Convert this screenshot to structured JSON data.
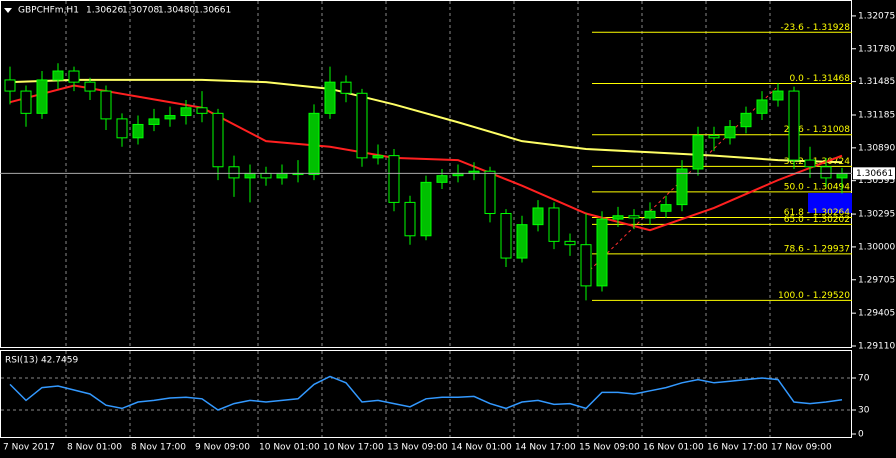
{
  "chart_data": {
    "type": "candlestick",
    "title": "GBPCHFm,H1",
    "header_values": [
      1.30626,
      1.30708,
      1.3048,
      1.30661
    ],
    "header_value_labels": [
      "1.30626",
      "1.30708",
      "1.30480",
      "1.30661"
    ],
    "ylim": [
      1.29101,
      1.32218
    ],
    "yticks": [
      1.32075,
      {
        "value": 1.3178,
        "label": "1.31780"
      },
      1.31485,
      1.31185,
      {
        "value": 1.3089,
        "label": "1.30890"
      },
      1.30595,
      1.30295,
      {
        "value": 1.3,
        "label": "1.30000"
      },
      1.29705,
      1.29405,
      {
        "value": 1.2911,
        "label": "1.29110"
      }
    ],
    "time_labels": [
      "7 Nov 2017",
      "8 Nov 01:00",
      "8 Nov 17:00",
      "9 Nov 09:00",
      "10 Nov 01:00",
      "10 Nov 17:00",
      "13 Nov 09:00",
      "14 Nov 01:00",
      "14 Nov 17:00",
      "15 Nov 09:00",
      "16 Nov 01:00",
      "16 Nov 17:00",
      "17 Nov 09:00"
    ],
    "grid": true,
    "up_color": "#00c000",
    "down_color": "#000000",
    "wick_color": "#00ff00",
    "open": [
      1.315,
      1.314,
      1.312,
      1.315,
      1.3158,
      1.3148,
      1.314,
      1.3115,
      1.3098,
      1.311,
      1.3115,
      1.3118,
      1.3125,
      1.312,
      1.3072,
      1.3062,
      1.3066,
      1.3062,
      1.3066,
      1.3065,
      1.312,
      1.3148,
      1.3138,
      1.308,
      1.3082,
      1.304,
      1.301,
      1.3058,
      1.3064,
      1.3066,
      1.3068,
      1.303,
      1.299,
      1.302,
      1.3035,
      1.3005,
      1.3002,
      1.2965,
      1.3025,
      1.3028,
      1.3026,
      1.3032,
      1.3038,
      1.307,
      1.31,
      1.3098,
      1.3108,
      1.312,
      1.3132,
      1.314,
      1.3078,
      1.3072,
      1.3062
    ],
    "high": [
      1.3162,
      1.3145,
      1.3158,
      1.3165,
      1.3162,
      1.3152,
      1.3145,
      1.312,
      1.3118,
      1.3124,
      1.3126,
      1.3132,
      1.314,
      1.3124,
      1.3082,
      1.3074,
      1.3072,
      1.3074,
      1.3078,
      1.3128,
      1.3162,
      1.3154,
      1.3142,
      1.3092,
      1.3088,
      1.3046,
      1.3064,
      1.307,
      1.3074,
      1.3076,
      1.3072,
      1.3034,
      1.3028,
      1.3042,
      1.304,
      1.3012,
      1.303,
      1.3032,
      1.3036,
      1.3034,
      1.304,
      1.3046,
      1.3078,
      1.3108,
      1.3108,
      1.3114,
      1.3126,
      1.314,
      1.3147,
      1.3144,
      1.309,
      1.308,
      1.3071
    ],
    "low": [
      1.3128,
      1.3108,
      1.3115,
      1.3142,
      1.314,
      1.3132,
      1.3105,
      1.309,
      1.3092,
      1.3104,
      1.3108,
      1.311,
      1.3112,
      1.306,
      1.3045,
      1.304,
      1.3055,
      1.3056,
      1.3058,
      1.306,
      1.3115,
      1.313,
      1.3072,
      1.3074,
      1.3032,
      1.3002,
      1.3006,
      1.3052,
      1.3058,
      1.306,
      1.3022,
      1.2982,
      1.2986,
      1.3014,
      1.2998,
      1.2992,
      1.2952,
      1.296,
      1.3018,
      1.3016,
      1.302,
      1.3026,
      1.3032,
      1.3064,
      1.3086,
      1.3092,
      1.3102,
      1.3114,
      1.3126,
      1.307,
      1.3062,
      1.3054,
      1.3048
    ],
    "close": [
      1.314,
      1.312,
      1.315,
      1.3158,
      1.3148,
      1.314,
      1.3115,
      1.3098,
      1.311,
      1.3115,
      1.3118,
      1.3125,
      1.312,
      1.3072,
      1.3062,
      1.3066,
      1.3062,
      1.3066,
      1.3065,
      1.312,
      1.3148,
      1.3138,
      1.308,
      1.3082,
      1.304,
      1.301,
      1.3058,
      1.3064,
      1.3066,
      1.3068,
      1.303,
      1.299,
      1.302,
      1.3035,
      1.3005,
      1.3002,
      1.2965,
      1.3025,
      1.3028,
      1.3026,
      1.3032,
      1.3038,
      1.307,
      1.31,
      1.3098,
      1.3108,
      1.312,
      1.3132,
      1.314,
      1.3078,
      1.3072,
      1.3062,
      1.3066
    ],
    "series": [
      {
        "color": "#ffff66",
        "x": [
          0,
          4,
          8,
          12,
          16,
          20,
          24,
          28,
          32,
          36,
          40,
          44,
          48,
          52
        ],
        "values": [
          1.3148,
          1.315,
          1.315,
          1.315,
          1.3148,
          1.3142,
          1.3128,
          1.3112,
          1.3095,
          1.3088,
          1.3085,
          1.3082,
          1.3078,
          1.3076
        ]
      },
      {
        "color": "#ff2020",
        "x": [
          0,
          4,
          8,
          12,
          16,
          20,
          24,
          28,
          32,
          36,
          40,
          44,
          48,
          52
        ],
        "values": [
          1.313,
          1.3145,
          1.3135,
          1.3125,
          1.3095,
          1.309,
          1.308,
          1.3078,
          1.3055,
          1.303,
          1.3015,
          1.3035,
          1.306,
          1.3082
        ]
      }
    ],
    "current_price": 1.30661,
    "fib_color": "#ffff00",
    "fib_levels": [
      {
        "value": 1.31928,
        "label": "-23.6 - 1.31928"
      },
      {
        "value": 1.31468,
        "label": "0.0 - 1.31468"
      },
      {
        "value": 1.31008,
        "label": "23.6 - 1.31008"
      },
      {
        "value": 1.30724,
        "label": "38.2 - 1.30724"
      },
      {
        "value": 1.30494,
        "label": "50.0 - 1.30494"
      },
      {
        "value": 1.30264,
        "label": "61.8 - 1.30264"
      },
      {
        "value": 1.30202,
        "label": "65.0 - 1.30202"
      },
      {
        "value": 1.29937,
        "label": "78.6 - 1.29937"
      },
      {
        "value": 1.2952,
        "label": "100.0 - 1.29520"
      }
    ],
    "rsi": {
      "title": "RSI(13) 42.7459",
      "color": "#3399ff",
      "ylim": [
        0,
        100
      ],
      "yticks": [
        70,
        30,
        0
      ],
      "values": [
        62,
        42,
        58,
        60,
        55,
        50,
        36,
        32,
        40,
        42,
        45,
        46,
        44,
        30,
        38,
        42,
        40,
        42,
        44,
        62,
        72,
        64,
        40,
        42,
        38,
        34,
        44,
        46,
        46,
        47,
        38,
        32,
        40,
        42,
        37,
        38,
        32,
        52,
        52,
        50,
        54,
        58,
        64,
        68,
        64,
        66,
        68,
        70,
        68,
        40,
        38,
        40,
        42.7459
      ]
    }
  }
}
